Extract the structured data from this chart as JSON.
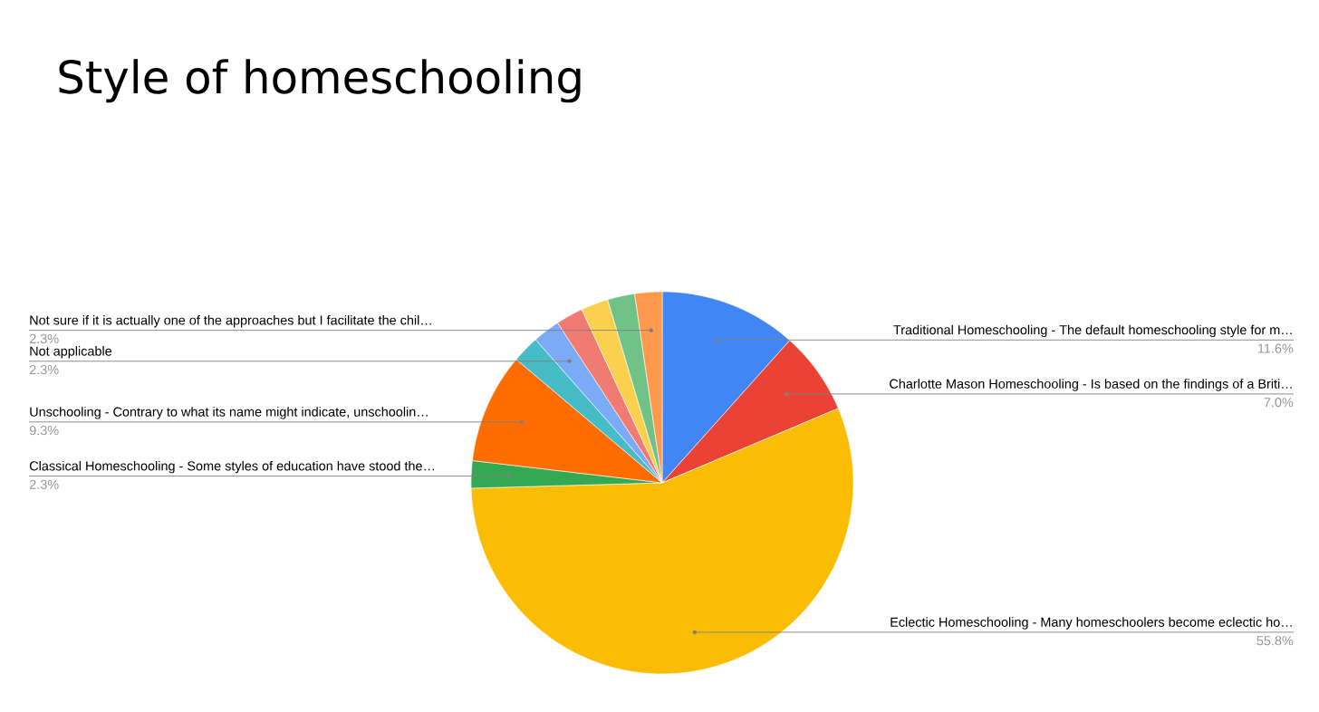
{
  "chart_data": {
    "type": "pie",
    "title": "Style of homeschooling",
    "categories": [
      "Traditional Homeschooling - The default homeschooling style for m…",
      "Charlotte Mason Homeschooling - Is based on the findings of a Briti…",
      "Eclectic Homeschooling - Many homeschoolers become eclectic ho…",
      "Classical Homeschooling - Some styles of education have stood the…",
      "Unschooling - Contrary to what its name might indicate, unschoolin…",
      null,
      "Not applicable",
      null,
      null,
      null,
      "Not sure if it is actually one of the approaches but I facilitate the chil…"
    ],
    "values": [
      11.6,
      7.0,
      55.8,
      2.3,
      9.3,
      2.3,
      2.3,
      2.3,
      2.3,
      2.3,
      2.3
    ],
    "colors": [
      "#4285f4",
      "#ea4335",
      "#fbbc04",
      "#34a853",
      "#ff6d01",
      "#46bdc6",
      "#7baaf7",
      "#f07b72",
      "#fcd04f",
      "#71c287",
      "#ff994d"
    ],
    "value_labels": [
      "11.6%",
      "7.0%",
      "55.8%",
      "2.3%",
      "9.3%",
      null,
      "2.3%",
      null,
      null,
      null,
      "2.3%"
    ]
  }
}
